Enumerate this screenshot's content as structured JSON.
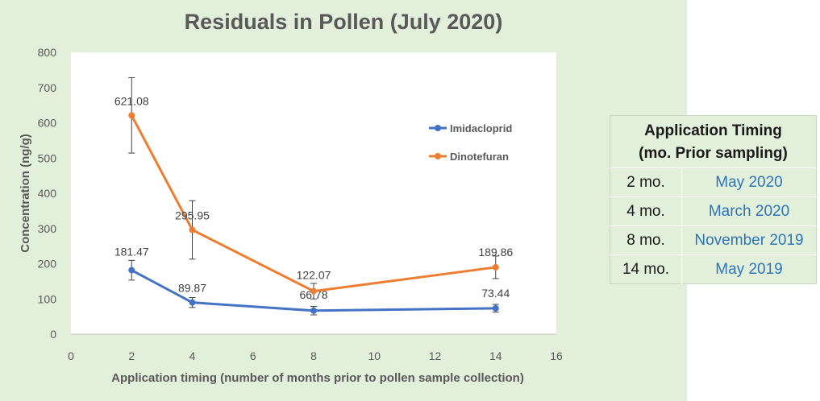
{
  "chart_data": {
    "type": "line",
    "title": "Residuals in Pollen (July 2020)",
    "xlabel": "Application timing (number of months prior to pollen sample collection)",
    "ylabel": "Concentration (ng/g)",
    "xlim": [
      0,
      16
    ],
    "ylim": [
      0,
      800
    ],
    "x_ticks": [
      0,
      2,
      4,
      6,
      8,
      10,
      12,
      14,
      16
    ],
    "y_ticks": [
      0,
      100,
      200,
      300,
      400,
      500,
      600,
      700,
      800
    ],
    "legend_position": "right",
    "grid": false,
    "series": [
      {
        "name": "Imidacloprid",
        "color": "#4472c4",
        "x": [
          2,
          4,
          8,
          14
        ],
        "y": [
          181.47,
          89.87,
          66.78,
          73.44
        ],
        "labels": [
          "181.47",
          "89.87",
          "66.78",
          "73.44"
        ],
        "error": [
          28,
          14,
          12,
          11
        ]
      },
      {
        "name": "Dinotefuran",
        "color": "#ed7d31",
        "x": [
          2,
          4,
          8,
          14
        ],
        "y": [
          621.08,
          295.95,
          122.07,
          189.86
        ],
        "labels": [
          "621.08",
          "295.95",
          "122.07",
          "189.86"
        ],
        "error": [
          107,
          83,
          22,
          32
        ]
      }
    ]
  },
  "table": {
    "header_line1": "Application Timing",
    "header_line2": "(mo. Prior sampling)",
    "rows": [
      {
        "months": "2 mo.",
        "date": "May 2020"
      },
      {
        "months": "4 mo.",
        "date": "March 2020"
      },
      {
        "months": "8 mo.",
        "date": "November 2019"
      },
      {
        "months": "14 mo.",
        "date": "May 2019"
      }
    ]
  }
}
